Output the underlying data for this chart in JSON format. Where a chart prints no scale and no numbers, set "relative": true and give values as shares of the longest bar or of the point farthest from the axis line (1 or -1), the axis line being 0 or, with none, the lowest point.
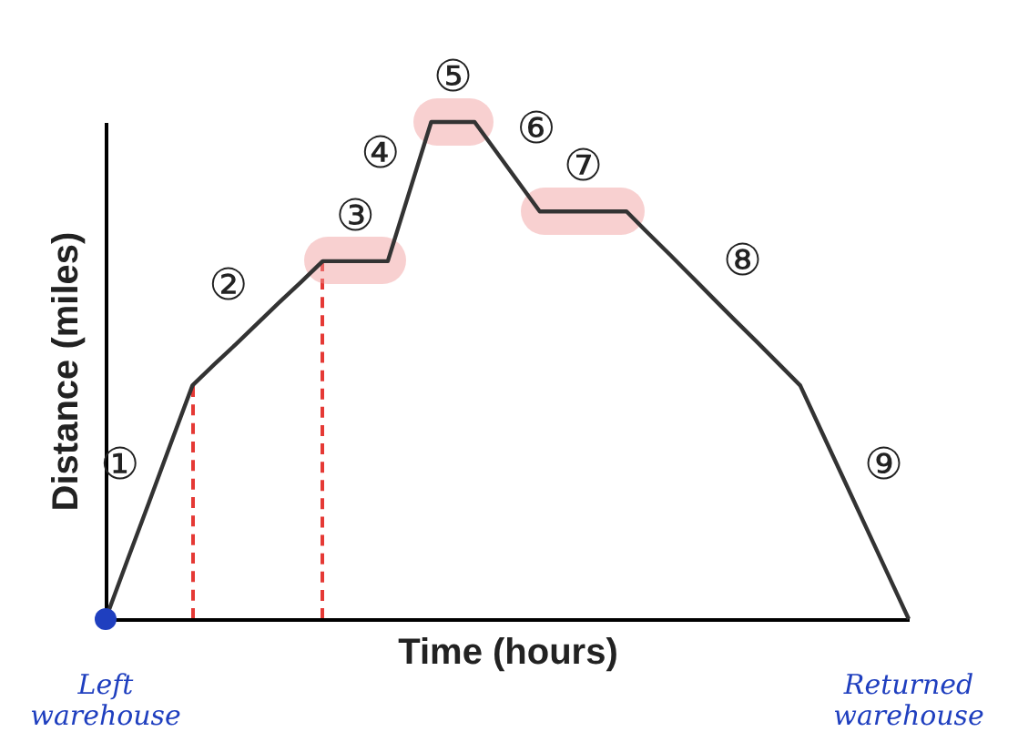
{
  "chart_data": {
    "type": "line",
    "relative": true,
    "xlabel": "Time (hours)",
    "ylabel": "Distance (miles)",
    "categories": [
      null,
      null,
      null,
      null,
      null,
      null,
      null,
      null,
      null,
      null,
      null,
      null,
      null,
      null,
      null,
      null,
      null,
      null,
      null,
      null,
      null,
      null,
      null,
      null,
      null,
      null,
      null,
      null,
      null,
      null,
      null,
      null,
      null,
      null,
      null,
      null,
      null,
      null
    ],
    "series": [
      {
        "color": "#333333",
        "values": [
          0,
          0.118,
          0.235,
          0.353,
          0.47,
          0.512,
          0.553,
          0.595,
          0.637,
          0.678,
          0.72,
          0.72,
          0.72,
          0.72,
          0.86,
          1,
          1,
          1,
          0.94,
          0.88,
          0.82,
          0.82,
          0.82,
          0.82,
          0.82,
          0.776,
          0.733,
          0.689,
          0.645,
          0.601,
          0.558,
          0.514,
          0.47,
          0.376,
          0.282,
          0.188,
          0.094,
          0
        ]
      }
    ],
    "annotations": [
      "①",
      "②",
      "③",
      "④",
      "⑤",
      "⑥",
      "⑦",
      "⑧",
      "⑨",
      "Left\nwarehouse",
      "Returned\nwarehouse"
    ],
    "grid": false
  }
}
